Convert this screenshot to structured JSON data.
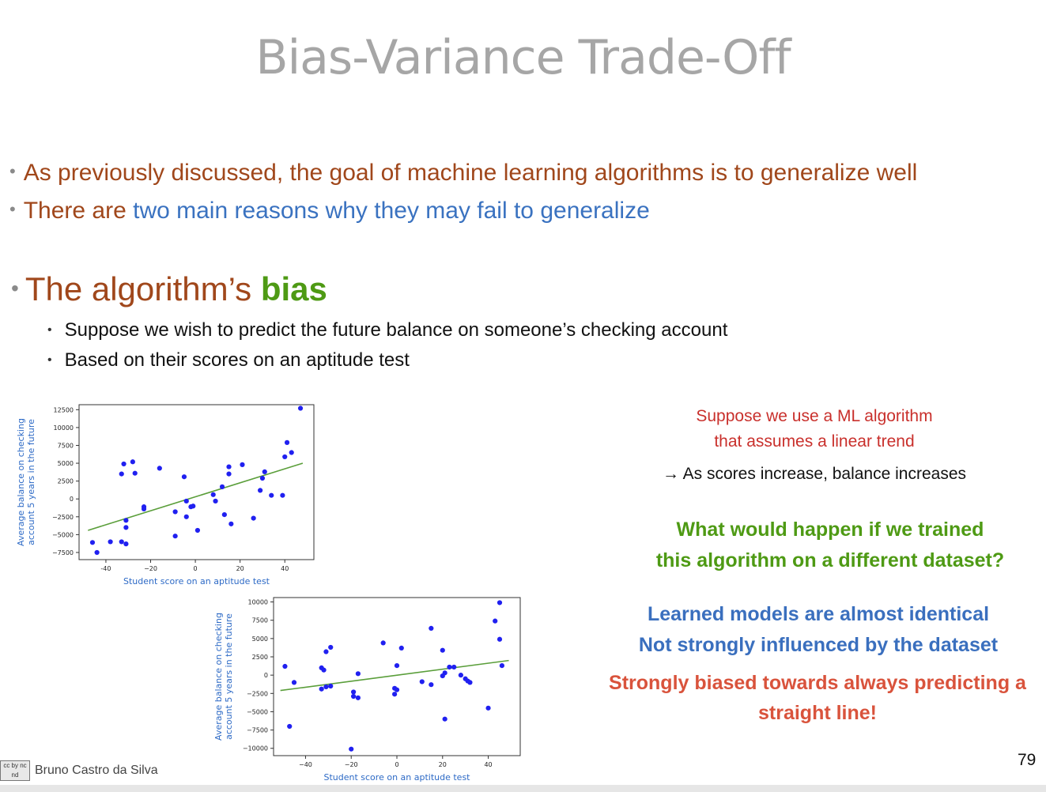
{
  "title": "Bias-Variance Trade-Off",
  "bullets": {
    "b1": "As previously discussed, the goal of machine learning algorithms is to generalize well",
    "b2_pre": "There are ",
    "b2_link": "two main reasons why they may fail to generalize",
    "big_pre": "The algorithm’s ",
    "big_bold": "bias",
    "sub1": "Suppose we wish to predict the future balance on someone’s checking account",
    "sub2": "Based on their scores on an aptitude test"
  },
  "right": {
    "r1": "Suppose we use a ML algorithm",
    "r2": "that assumes a linear trend",
    "arrow": "→ As scores increase, balance increases",
    "q1": "What would happen if we trained",
    "q2": "this algorithm on a different dataset?",
    "b1": "Learned models are almost identical",
    "b2": "Not strongly influenced by the dataset",
    "c1": "Strongly biased towards always predicting a",
    "c2": "straight line!"
  },
  "footer": {
    "author": "Bruno Castro da Silva",
    "license": "cc by nc nd",
    "page": "79"
  },
  "colors": {
    "title": "#a6a6a6",
    "brown": "#a0471b",
    "blue": "#3a72c0",
    "green": "#4e9a14",
    "red": "#c9302c",
    "points": "#2020f0",
    "fit": "#5a9e3a"
  },
  "chart_data": [
    {
      "type": "scatter",
      "title": "",
      "xlabel": "Student score on an aptitude test",
      "ylabel": [
        "Average balance on checking",
        "account 5 years in the future"
      ],
      "xlim": [
        -52,
        53
      ],
      "ylim": [
        -8500,
        13200
      ],
      "xticks": [
        -40,
        -20,
        0,
        20,
        40
      ],
      "xtick_labels": [
        "-40",
        "−20",
        "0",
        "20",
        "40"
      ],
      "yticks": [
        -7500,
        -5000,
        -2500,
        0,
        2500,
        5000,
        7500,
        10000,
        12500
      ],
      "ytick_labels": [
        "−7500",
        "−5000",
        "−2500",
        "0",
        "2500",
        "5000",
        "7500",
        "10000",
        "12500"
      ],
      "fit_line": [
        [
          -48,
          -4400
        ],
        [
          48,
          5000
        ]
      ],
      "points": [
        [
          -46,
          -6100
        ],
        [
          -44,
          -7500
        ],
        [
          -38,
          -6000
        ],
        [
          -33,
          -6000
        ],
        [
          -31,
          -6300
        ],
        [
          -33,
          3500
        ],
        [
          -32,
          4900
        ],
        [
          -31,
          -4000
        ],
        [
          -31,
          -3000
        ],
        [
          -28,
          5200
        ],
        [
          -27,
          3600
        ],
        [
          -23,
          -1100
        ],
        [
          -23,
          -1400
        ],
        [
          -16,
          4300
        ],
        [
          -9,
          -1800
        ],
        [
          -9,
          -5200
        ],
        [
          -5,
          3100
        ],
        [
          -4,
          -2500
        ],
        [
          -4,
          -300
        ],
        [
          -2,
          -1100
        ],
        [
          -1,
          -1000
        ],
        [
          1,
          -4400
        ],
        [
          8,
          600
        ],
        [
          9,
          -300
        ],
        [
          12,
          1700
        ],
        [
          13,
          -2200
        ],
        [
          15,
          3500
        ],
        [
          15,
          4500
        ],
        [
          16,
          -3500
        ],
        [
          21,
          4800
        ],
        [
          26,
          -2700
        ],
        [
          29,
          1200
        ],
        [
          30,
          2900
        ],
        [
          31,
          3800
        ],
        [
          34,
          500
        ],
        [
          39,
          500
        ],
        [
          40,
          5900
        ],
        [
          41,
          7900
        ],
        [
          43,
          6500
        ],
        [
          47,
          12700
        ]
      ]
    },
    {
      "type": "scatter",
      "title": "",
      "xlabel": "Student score on an aptitude test",
      "ylabel": [
        "Average balance on checking",
        "account 5 years in the future"
      ],
      "xlim": [
        -54,
        54
      ],
      "ylim": [
        -11000,
        10600
      ],
      "xticks": [
        -40,
        -20,
        0,
        20,
        40
      ],
      "xtick_labels": [
        "−40",
        "−20",
        "0",
        "20",
        "40"
      ],
      "yticks": [
        -10000,
        -7500,
        -5000,
        -2500,
        0,
        2500,
        5000,
        7500,
        10000
      ],
      "ytick_labels": [
        "−10000",
        "−7500",
        "−5000",
        "−2500",
        "0",
        "2500",
        "5000",
        "7500",
        "10000"
      ],
      "fit_line": [
        [
          -51,
          -2100
        ],
        [
          49,
          2000
        ]
      ],
      "points": [
        [
          -49,
          1200
        ],
        [
          -47,
          -7000
        ],
        [
          -45,
          -1000
        ],
        [
          -33,
          1000
        ],
        [
          -33,
          -1900
        ],
        [
          -32,
          700
        ],
        [
          -31,
          3200
        ],
        [
          -31,
          -1600
        ],
        [
          -29,
          3800
        ],
        [
          -29,
          -1500
        ],
        [
          -20,
          -10100
        ],
        [
          -19,
          -2300
        ],
        [
          -19,
          -2900
        ],
        [
          -17,
          -3100
        ],
        [
          -17,
          200
        ],
        [
          -6,
          4400
        ],
        [
          -1,
          -2600
        ],
        [
          -1,
          -1800
        ],
        [
          0,
          1300
        ],
        [
          0,
          -2000
        ],
        [
          2,
          3700
        ],
        [
          11,
          -900
        ],
        [
          15,
          -1300
        ],
        [
          15,
          6400
        ],
        [
          20,
          3400
        ],
        [
          20,
          -100
        ],
        [
          21,
          300
        ],
        [
          21,
          -6000
        ],
        [
          23,
          1100
        ],
        [
          25,
          1100
        ],
        [
          28,
          0
        ],
        [
          30,
          -500
        ],
        [
          31,
          -800
        ],
        [
          32,
          -1000
        ],
        [
          40,
          -4500
        ],
        [
          43,
          7400
        ],
        [
          45,
          9900
        ],
        [
          45,
          4900
        ],
        [
          46,
          1300
        ]
      ]
    }
  ]
}
